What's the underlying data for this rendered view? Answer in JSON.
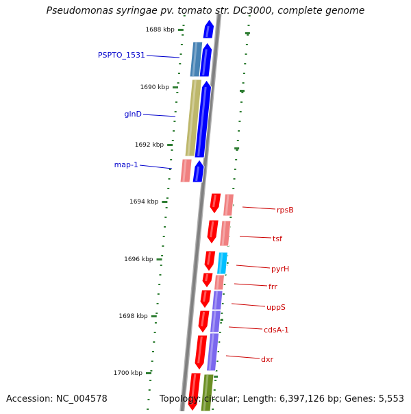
{
  "title": "Pseudomonas syringae pv. tomato str. DC3000, complete genome",
  "footer": {
    "accession": "Accession: NC_004578",
    "summary": "Topology: circular; Length: 6,397,126 bp; Genes: 5,553"
  },
  "colors": {
    "axis": "#808080",
    "tick_mark": "#2e7d32",
    "forward_label": "#0000cc",
    "reverse_label": "#cc0000",
    "forward_strand": "#0000ff",
    "reverse_strand": "#ff0000"
  },
  "scale_labels": [
    "1688 kbp",
    "1690 kbp",
    "1692 kbp",
    "1694 kbp",
    "1696 kbp",
    "1698 kbp",
    "1700 kbp"
  ],
  "forward_genes": [
    {
      "label": "PSPTO_1531",
      "color": "#4682b4"
    },
    {
      "label": "glnD",
      "color": "#bdb76b"
    },
    {
      "label": "map-1",
      "color": "#f08080"
    }
  ],
  "reverse_genes": [
    {
      "label": "rpsB",
      "color": "#f08080"
    },
    {
      "label": "tsf",
      "color": "#f08080"
    },
    {
      "label": "pyrH",
      "color": "#00bfff"
    },
    {
      "label": "frr",
      "color": "#f08080"
    },
    {
      "label": "uppS",
      "color": "#7b68ee"
    },
    {
      "label": "cdsA-1",
      "color": "#7b68ee"
    },
    {
      "label": "dxr",
      "color": "#7b68ee"
    }
  ]
}
